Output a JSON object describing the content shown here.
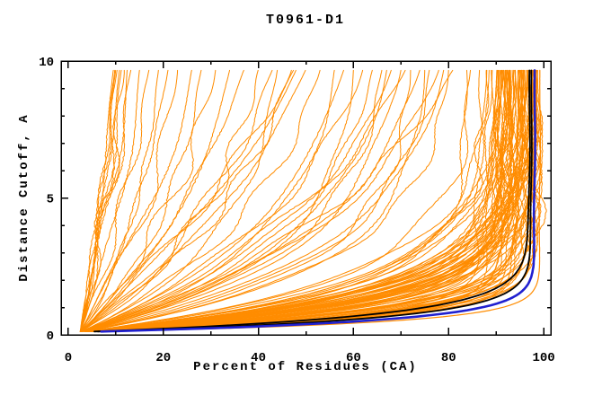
{
  "chart_data": {
    "type": "line",
    "title": "T0961-D1",
    "xlabel": "Percent of Residues (CA)",
    "ylabel": "Distance Cutoff, A",
    "xlim": [
      -1.5,
      101.5
    ],
    "ylim": [
      0,
      10
    ],
    "x_major_ticks": [
      0,
      20,
      40,
      60,
      80,
      100
    ],
    "x_minor_ticks": [
      10,
      30,
      50,
      70,
      90
    ],
    "y_major_ticks": [
      0,
      5,
      10
    ],
    "y_minor_ticks": [
      1,
      2,
      3,
      4,
      6,
      7,
      8,
      9
    ],
    "axes_mirrored": true,
    "ticks_inward": true,
    "grid": false,
    "legend": null,
    "colors": {
      "predictions": "#FF8C00",
      "highlight_black": "#000000",
      "highlight_blue": "#2020D0",
      "axis": "#000000",
      "background": "#FFFFFF"
    },
    "curve_model": "percent(d) = 2.5 + (max_percent - 2.5) * (1 - exp(-(d - 0.1)/tau)) / (1 - exp(-9.6/tau)), cutoff d from 0.1 to 9.7 Angstroms; all curves start near (3%, 0.1A)",
    "curve_format": "[max_percent_at_10A, tau]",
    "series_groups": [
      {
        "name": "orange-predictions",
        "color": "#FF8C00",
        "stroke_width": 1,
        "wiggle": true,
        "curves": [
          [
            9.5,
            11
          ],
          [
            10,
            13
          ],
          [
            10.3,
            9
          ],
          [
            10.8,
            14
          ],
          [
            11.2,
            10
          ],
          [
            11.8,
            12
          ],
          [
            12.4,
            9
          ],
          [
            13.2,
            13
          ],
          [
            9.8,
            16
          ],
          [
            15,
            7
          ],
          [
            17,
            9
          ],
          [
            19,
            5
          ],
          [
            21,
            8
          ],
          [
            23,
            6
          ],
          [
            26,
            10
          ],
          [
            28,
            5
          ],
          [
            31,
            7
          ],
          [
            34,
            6
          ],
          [
            37,
            9
          ],
          [
            40,
            5
          ],
          [
            43,
            7
          ],
          [
            47,
            6
          ],
          [
            50,
            8
          ],
          [
            53,
            5
          ],
          [
            48,
            12
          ],
          [
            47.5,
            14
          ],
          [
            44,
            3.5
          ],
          [
            56,
            3.2
          ],
          [
            58,
            4.5
          ],
          [
            60,
            2.6
          ],
          [
            62,
            5.2
          ],
          [
            64,
            3.6
          ],
          [
            66,
            2.9
          ],
          [
            68,
            4.8
          ],
          [
            70,
            3.1
          ],
          [
            72,
            2.3
          ],
          [
            74,
            3.9
          ],
          [
            76,
            2.7
          ],
          [
            78,
            4.4
          ],
          [
            79,
            3.2
          ],
          [
            80,
            2.5
          ],
          [
            81,
            5.8
          ],
          [
            75,
            2.2
          ],
          [
            71,
            6
          ],
          [
            67,
            3.4
          ]
        ],
        "bundle": {
          "count": 80,
          "max_percent_range": [
            82,
            98.8
          ],
          "tau_range": [
            0.45,
            2.6
          ],
          "seed": 42
        }
      },
      {
        "name": "orange-best-prediction",
        "color": "#FF8C00",
        "stroke_width": 1.2,
        "wiggle": false,
        "curves": [
          [
            99.2,
            0.36
          ]
        ]
      },
      {
        "name": "black-highlight-models",
        "color": "#000000",
        "stroke_width": 1.8,
        "wiggle": false,
        "curves": [
          [
            97.0,
            0.62
          ],
          [
            97.4,
            0.5
          ]
        ]
      },
      {
        "name": "blue-best-model",
        "color": "#2020D0",
        "stroke_width": 2.6,
        "wiggle": false,
        "curves": [
          [
            98.1,
            0.42
          ]
        ]
      }
    ]
  }
}
